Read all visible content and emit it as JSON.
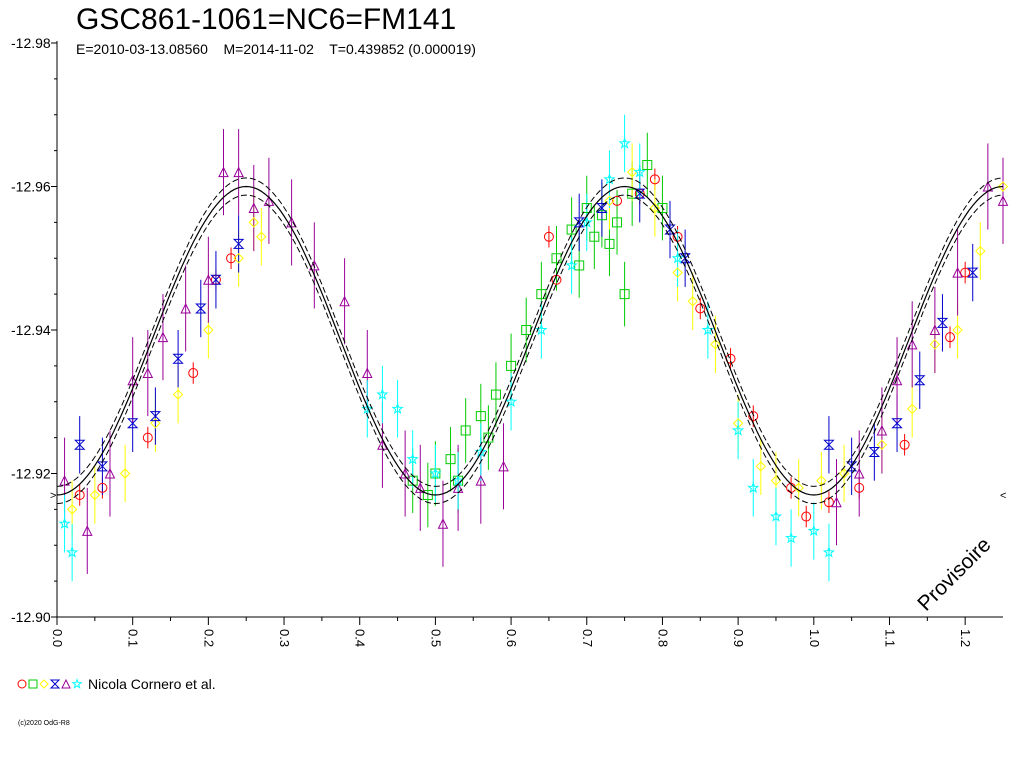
{
  "chart_data": {
    "type": "scatter",
    "title": "GSC861-1061=NC6=FM141",
    "subtitle": "E=2010-03-13.08560    M=2014-11-02    T=0.439852 (0.000019)",
    "xlabel": "",
    "ylabel": "",
    "xlim": [
      0.0,
      1.25
    ],
    "ylim": [
      -12.98,
      -12.9
    ],
    "y_inverted": true,
    "x_ticks": [
      "0.0",
      "0.1",
      "0.2",
      "0.3",
      "0.4",
      "0.5",
      "0.6",
      "0.7",
      "0.8",
      "0.9",
      "1.0",
      "1.1",
      "1.2"
    ],
    "y_ticks": [
      "-12.98",
      "-12.96",
      "-12.94",
      "-12.92",
      "-12.90"
    ],
    "grid": false,
    "legend": {
      "position": "bottom-left",
      "label": "Nicola Cornero et al."
    },
    "stamp": "Provisoire",
    "copyright": "(c)2020 OdG-R8",
    "fit_curve": {
      "mean": -12.9385,
      "amplitude": 0.0215,
      "min_phase": 0.0,
      "x": [
        0.0,
        0.05,
        0.1,
        0.15,
        0.2,
        0.25,
        0.3,
        0.35,
        0.4,
        0.45,
        0.5,
        0.55,
        0.6,
        0.65,
        0.7,
        0.75,
        0.8,
        0.85,
        0.9,
        0.95,
        1.0,
        1.05,
        1.1,
        1.15,
        1.2,
        1.25
      ],
      "y": [
        -12.917,
        -12.919,
        -12.926,
        -12.937,
        -12.949,
        -12.957,
        -12.959,
        -12.952,
        -12.94,
        -12.927,
        -12.918,
        -12.919,
        -12.928,
        -12.941,
        -12.954,
        -12.96,
        -12.957,
        -12.946,
        -12.932,
        -12.921,
        -12.917,
        -12.919,
        -12.926,
        -12.937,
        -12.949,
        -12.957
      ],
      "band": 0.0012
    },
    "series": [
      {
        "symbol": "circle",
        "color": "#ff0000",
        "error": 0.0015,
        "points": [
          [
            0.03,
            -12.917
          ],
          [
            0.06,
            -12.918
          ],
          [
            0.12,
            -12.925
          ],
          [
            0.18,
            -12.934
          ],
          [
            0.21,
            -12.947
          ],
          [
            0.23,
            -12.95
          ],
          [
            0.65,
            -12.953
          ],
          [
            0.66,
            -12.947
          ],
          [
            0.74,
            -12.958
          ],
          [
            0.77,
            -12.959
          ],
          [
            0.79,
            -12.961
          ],
          [
            0.82,
            -12.953
          ],
          [
            0.85,
            -12.943
          ],
          [
            0.89,
            -12.936
          ],
          [
            0.92,
            -12.928
          ],
          [
            0.97,
            -12.918
          ],
          [
            0.99,
            -12.914
          ],
          [
            1.02,
            -12.916
          ],
          [
            1.06,
            -12.918
          ],
          [
            1.12,
            -12.924
          ],
          [
            1.18,
            -12.939
          ],
          [
            1.2,
            -12.948
          ]
        ]
      },
      {
        "symbol": "square",
        "color": "#00cc00",
        "error": 0.0045,
        "points": [
          [
            0.47,
            -12.919
          ],
          [
            0.49,
            -12.917
          ],
          [
            0.5,
            -12.92
          ],
          [
            0.52,
            -12.922
          ],
          [
            0.54,
            -12.926
          ],
          [
            0.56,
            -12.928
          ],
          [
            0.58,
            -12.931
          ],
          [
            0.6,
            -12.935
          ],
          [
            0.62,
            -12.94
          ],
          [
            0.64,
            -12.945
          ],
          [
            0.66,
            -12.95
          ],
          [
            0.68,
            -12.954
          ],
          [
            0.7,
            -12.957
          ],
          [
            0.72,
            -12.956
          ],
          [
            0.74,
            -12.955
          ],
          [
            0.76,
            -12.959
          ],
          [
            0.78,
            -12.963
          ],
          [
            0.8,
            -12.957
          ],
          [
            0.75,
            -12.945
          ],
          [
            0.73,
            -12.952
          ],
          [
            0.71,
            -12.953
          ],
          [
            0.69,
            -12.949
          ],
          [
            0.57,
            -12.925
          ],
          [
            0.53,
            -12.919
          ]
        ]
      },
      {
        "symbol": "diamond",
        "color": "#ffff00",
        "error": 0.004,
        "points": [
          [
            0.02,
            -12.915
          ],
          [
            0.05,
            -12.917
          ],
          [
            0.09,
            -12.92
          ],
          [
            0.13,
            -12.927
          ],
          [
            0.16,
            -12.931
          ],
          [
            0.2,
            -12.94
          ],
          [
            0.24,
            -12.95
          ],
          [
            0.26,
            -12.955
          ],
          [
            0.27,
            -12.953
          ],
          [
            0.73,
            -12.958
          ],
          [
            0.76,
            -12.962
          ],
          [
            0.79,
            -12.957
          ],
          [
            0.82,
            -12.948
          ],
          [
            0.84,
            -12.944
          ],
          [
            0.87,
            -12.938
          ],
          [
            0.9,
            -12.927
          ],
          [
            0.93,
            -12.921
          ],
          [
            0.95,
            -12.919
          ],
          [
            0.98,
            -12.918
          ],
          [
            1.01,
            -12.919
          ],
          [
            1.04,
            -12.92
          ],
          [
            1.09,
            -12.924
          ],
          [
            1.13,
            -12.929
          ],
          [
            1.16,
            -12.938
          ],
          [
            1.19,
            -12.94
          ],
          [
            1.22,
            -12.951
          ],
          [
            1.25,
            -12.96
          ]
        ]
      },
      {
        "symbol": "hourglass",
        "color": "#0000cc",
        "error": 0.004,
        "points": [
          [
            0.03,
            -12.924
          ],
          [
            0.06,
            -12.921
          ],
          [
            0.1,
            -12.927
          ],
          [
            0.13,
            -12.928
          ],
          [
            0.16,
            -12.936
          ],
          [
            0.19,
            -12.943
          ],
          [
            0.21,
            -12.947
          ],
          [
            0.24,
            -12.952
          ],
          [
            0.69,
            -12.955
          ],
          [
            0.72,
            -12.957
          ],
          [
            0.77,
            -12.959
          ],
          [
            0.81,
            -12.954
          ],
          [
            0.83,
            -12.95
          ],
          [
            1.02,
            -12.924
          ],
          [
            1.05,
            -12.921
          ],
          [
            1.08,
            -12.923
          ],
          [
            1.11,
            -12.927
          ],
          [
            1.14,
            -12.933
          ],
          [
            1.17,
            -12.941
          ],
          [
            1.21,
            -12.948
          ]
        ]
      },
      {
        "symbol": "triangle",
        "color": "#990099",
        "error": 0.006,
        "points": [
          [
            0.01,
            -12.919
          ],
          [
            0.04,
            -12.912
          ],
          [
            0.07,
            -12.92
          ],
          [
            0.1,
            -12.933
          ],
          [
            0.12,
            -12.934
          ],
          [
            0.14,
            -12.939
          ],
          [
            0.17,
            -12.943
          ],
          [
            0.2,
            -12.947
          ],
          [
            0.22,
            -12.962
          ],
          [
            0.24,
            -12.962
          ],
          [
            0.26,
            -12.957
          ],
          [
            0.28,
            -12.958
          ],
          [
            0.31,
            -12.955
          ],
          [
            0.34,
            -12.949
          ],
          [
            0.38,
            -12.944
          ],
          [
            0.41,
            -12.934
          ],
          [
            0.43,
            -12.924
          ],
          [
            0.46,
            -12.92
          ],
          [
            0.48,
            -12.918
          ],
          [
            0.51,
            -12.913
          ],
          [
            0.53,
            -12.918
          ],
          [
            0.56,
            -12.919
          ],
          [
            0.59,
            -12.921
          ],
          [
            1.03,
            -12.916
          ],
          [
            1.06,
            -12.92
          ],
          [
            1.09,
            -12.926
          ],
          [
            1.11,
            -12.933
          ],
          [
            1.13,
            -12.938
          ],
          [
            1.16,
            -12.94
          ],
          [
            1.19,
            -12.948
          ],
          [
            1.23,
            -12.96
          ],
          [
            1.25,
            -12.958
          ]
        ]
      },
      {
        "symbol": "star",
        "color": "#00ffff",
        "error": 0.004,
        "points": [
          [
            0.01,
            -12.913
          ],
          [
            0.02,
            -12.909
          ],
          [
            0.41,
            -12.929
          ],
          [
            0.43,
            -12.931
          ],
          [
            0.45,
            -12.929
          ],
          [
            0.47,
            -12.922
          ],
          [
            0.5,
            -12.92
          ],
          [
            0.53,
            -12.919
          ],
          [
            0.56,
            -12.923
          ],
          [
            0.6,
            -12.93
          ],
          [
            0.64,
            -12.94
          ],
          [
            0.68,
            -12.949
          ],
          [
            0.7,
            -12.955
          ],
          [
            0.73,
            -12.961
          ],
          [
            0.75,
            -12.966
          ],
          [
            0.77,
            -12.962
          ],
          [
            0.82,
            -12.95
          ],
          [
            0.86,
            -12.94
          ],
          [
            0.9,
            -12.926
          ],
          [
            0.92,
            -12.918
          ],
          [
            0.95,
            -12.914
          ],
          [
            0.97,
            -12.911
          ],
          [
            1.0,
            -12.912
          ],
          [
            1.02,
            -12.909
          ]
        ]
      }
    ]
  }
}
